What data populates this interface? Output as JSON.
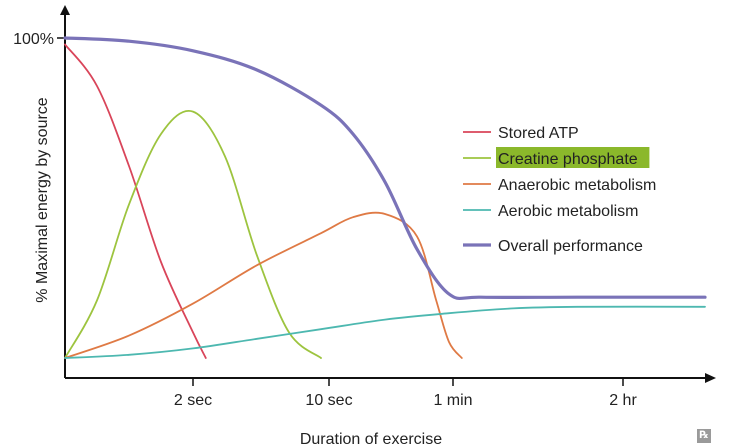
{
  "chart_data": {
    "type": "line",
    "xlabel": "Duration of exercise",
    "ylabel": "% Maximal energy by source",
    "x_ticks": [
      "2 sec",
      "10 sec",
      "1 min",
      "2 hr"
    ],
    "y_ticks": [
      "100%"
    ],
    "x_scale": "nonlinear (time)",
    "ylim": [
      0,
      100
    ],
    "grid": false,
    "legend_position": "right",
    "series": [
      {
        "name": "Stored ATP",
        "color": "#d9455a",
        "width": 1.8,
        "points": [
          [
            0,
            98
          ],
          [
            0.25,
            85
          ],
          [
            0.5,
            60
          ],
          [
            0.75,
            30
          ],
          [
            1.0,
            8
          ],
          [
            1.1,
            0
          ]
        ]
      },
      {
        "name": "Creatine phosphate",
        "color": "#9dc43f",
        "width": 1.8,
        "highlight": "#8bb82b",
        "points": [
          [
            0,
            0
          ],
          [
            0.25,
            18
          ],
          [
            0.5,
            48
          ],
          [
            0.75,
            70
          ],
          [
            1.0,
            77
          ],
          [
            1.25,
            63
          ],
          [
            1.5,
            32
          ],
          [
            1.75,
            8
          ],
          [
            2.0,
            0
          ]
        ]
      },
      {
        "name": "Anaerobic metabolism",
        "color": "#df7a45",
        "width": 1.8,
        "points": [
          [
            0,
            0
          ],
          [
            0.5,
            7
          ],
          [
            1.0,
            17
          ],
          [
            1.5,
            29
          ],
          [
            2.0,
            39
          ],
          [
            2.25,
            44
          ],
          [
            2.5,
            45
          ],
          [
            2.75,
            38
          ],
          [
            2.9,
            18
          ],
          [
            3.0,
            5
          ],
          [
            3.1,
            0
          ]
        ]
      },
      {
        "name": "Aerobic metabolism",
        "color": "#4db8b0",
        "width": 1.8,
        "points": [
          [
            0,
            0
          ],
          [
            0.5,
            1
          ],
          [
            1.0,
            3
          ],
          [
            1.5,
            6
          ],
          [
            2.0,
            9
          ],
          [
            2.5,
            12
          ],
          [
            3.0,
            14
          ],
          [
            3.5,
            15.5
          ],
          [
            4.0,
            16
          ],
          [
            5.0,
            16
          ]
        ]
      },
      {
        "name": "Overall performance",
        "color": "#7a73b8",
        "width": 3.2,
        "points": [
          [
            0,
            100
          ],
          [
            0.5,
            99
          ],
          [
            1.0,
            96
          ],
          [
            1.5,
            90
          ],
          [
            2.0,
            79
          ],
          [
            2.25,
            70
          ],
          [
            2.5,
            55
          ],
          [
            2.75,
            34
          ],
          [
            3.0,
            20
          ],
          [
            3.25,
            19
          ],
          [
            4.0,
            19
          ],
          [
            5.0,
            19
          ]
        ]
      }
    ]
  }
}
